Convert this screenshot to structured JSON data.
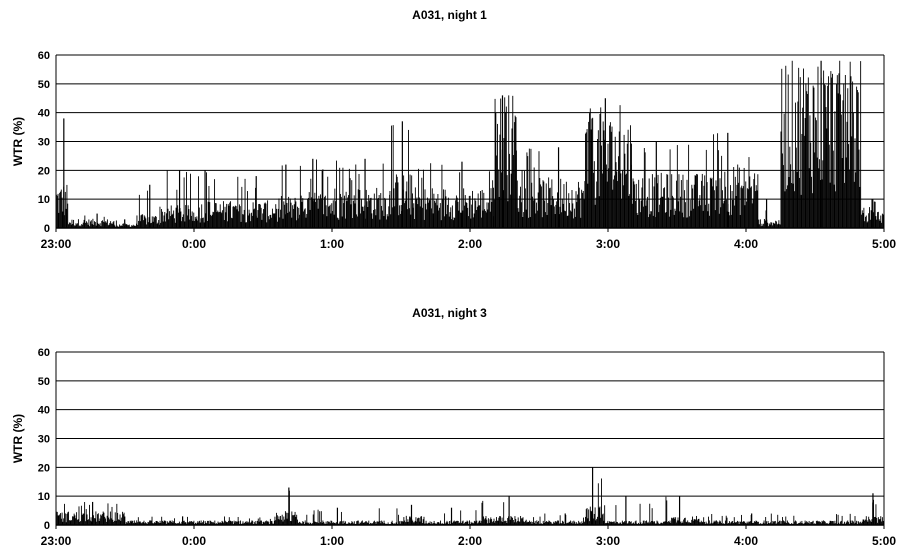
{
  "chart_data": [
    {
      "type": "bar",
      "title": "A031, night 1",
      "xlabel": "",
      "ylabel": "WTR (%)",
      "ylim": [
        0,
        60
      ],
      "y_ticks": [
        "0",
        "10",
        "20",
        "30",
        "40",
        "50",
        "60"
      ],
      "x_ticks": [
        "23:00",
        "0:00",
        "1:00",
        "2:00",
        "3:00",
        "4:00",
        "5:00"
      ],
      "grid": true,
      "color": "#000000",
      "segments": [
        {
          "t": [
            "23:00",
            "23:05"
          ],
          "value": 10,
          "peak": 38
        },
        {
          "t": [
            "23:05",
            "23:25"
          ],
          "value": 2,
          "peak": 5
        },
        {
          "t": [
            "23:25",
            "23:35"
          ],
          "value": 1,
          "peak": 3
        },
        {
          "t": [
            "23:35",
            "23:45"
          ],
          "value": 3,
          "peak": 15
        },
        {
          "t": [
            "23:45",
            "0:00"
          ],
          "value": 5,
          "peak": 20
        },
        {
          "t": [
            "0:00",
            "0:15"
          ],
          "value": 6,
          "peak": 20
        },
        {
          "t": [
            "0:15",
            "0:35"
          ],
          "value": 6,
          "peak": 18
        },
        {
          "t": [
            "0:35",
            "0:45"
          ],
          "value": 7,
          "peak": 22
        },
        {
          "t": [
            "0:45",
            "1:00"
          ],
          "value": 8,
          "peak": 24
        },
        {
          "t": [
            "1:00",
            "1:25"
          ],
          "value": 9,
          "peak": 24
        },
        {
          "t": [
            "1:25",
            "1:35"
          ],
          "value": 12,
          "peak": 37
        },
        {
          "t": [
            "1:35",
            "2:10"
          ],
          "value": 9,
          "peak": 23
        },
        {
          "t": [
            "2:10",
            "2:20"
          ],
          "value": 30,
          "peak": 46
        },
        {
          "t": [
            "2:20",
            "2:50"
          ],
          "value": 11,
          "peak": 28
        },
        {
          "t": [
            "2:50",
            "3:10"
          ],
          "value": 25,
          "peak": 45
        },
        {
          "t": [
            "3:10",
            "3:45"
          ],
          "value": 12,
          "peak": 30
        },
        {
          "t": [
            "3:45",
            "4:05"
          ],
          "value": 14,
          "peak": 33
        },
        {
          "t": [
            "4:05",
            "4:15"
          ],
          "value": 2,
          "peak": 10
        },
        {
          "t": [
            "4:15",
            "4:50"
          ],
          "value": 38,
          "peak": 58
        },
        {
          "t": [
            "4:50",
            "5:00"
          ],
          "value": 4,
          "peak": 10
        }
      ]
    },
    {
      "type": "bar",
      "title": "A031, night 3",
      "xlabel": "",
      "ylabel": "WTR (%)",
      "ylim": [
        0,
        60
      ],
      "y_ticks": [
        "0",
        "10",
        "20",
        "30",
        "40",
        "50",
        "60"
      ],
      "x_ticks": [
        "23:00",
        "0:00",
        "1:00",
        "2:00",
        "3:00",
        "4:00",
        "5:00"
      ],
      "grid": true,
      "color": "#000000",
      "segments": [
        {
          "t": [
            "23:00",
            "23:30"
          ],
          "value": 3,
          "peak": 8
        },
        {
          "t": [
            "23:30",
            "0:35"
          ],
          "value": 1,
          "peak": 3
        },
        {
          "t": [
            "0:35",
            "0:45"
          ],
          "value": 3,
          "peak": 13
        },
        {
          "t": [
            "0:45",
            "1:30"
          ],
          "value": 1,
          "peak": 6
        },
        {
          "t": [
            "1:30",
            "1:40"
          ],
          "value": 2,
          "peak": 7
        },
        {
          "t": [
            "1:40",
            "2:05"
          ],
          "value": 1,
          "peak": 6
        },
        {
          "t": [
            "2:05",
            "2:25"
          ],
          "value": 2,
          "peak": 10
        },
        {
          "t": [
            "2:25",
            "2:50"
          ],
          "value": 1,
          "peak": 4
        },
        {
          "t": [
            "2:50",
            "2:58"
          ],
          "value": 4,
          "peak": 20
        },
        {
          "t": [
            "2:58",
            "3:25"
          ],
          "value": 1,
          "peak": 10
        },
        {
          "t": [
            "3:25",
            "3:40"
          ],
          "value": 2,
          "peak": 10
        },
        {
          "t": [
            "3:40",
            "4:50"
          ],
          "value": 1,
          "peak": 4
        },
        {
          "t": [
            "4:50",
            "5:00"
          ],
          "value": 2,
          "peak": 11
        }
      ]
    }
  ]
}
